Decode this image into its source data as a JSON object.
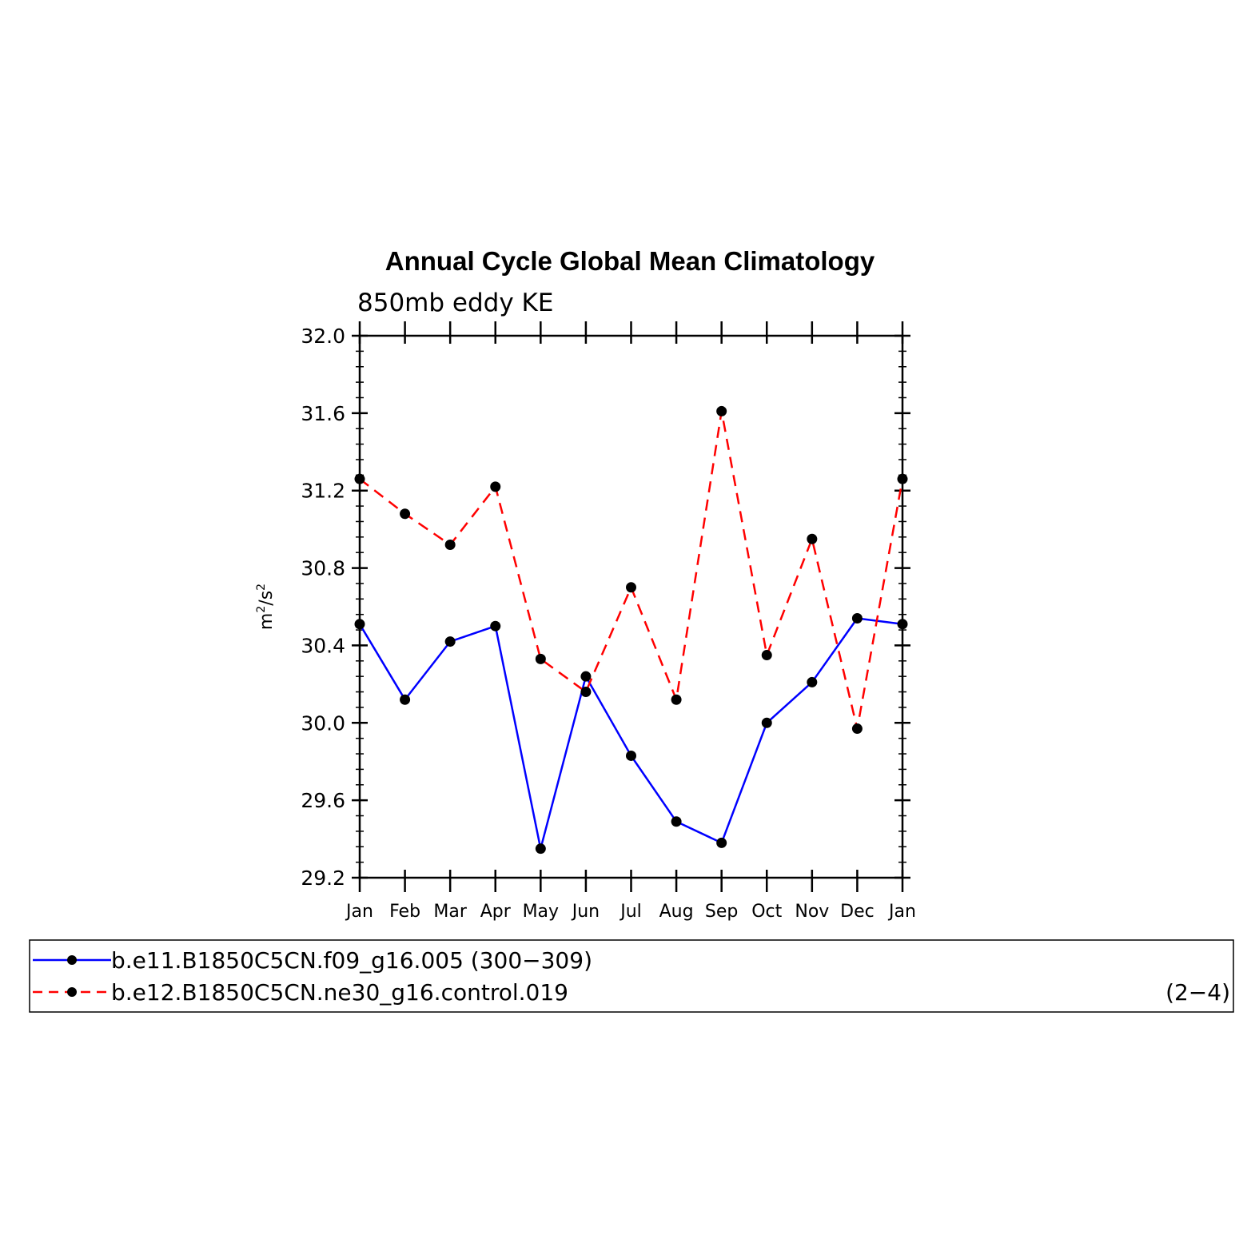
{
  "chart_data": {
    "type": "line",
    "title": "Annual Cycle Global Mean Climatology",
    "subtitle": "850mb eddy KE",
    "ylabel_base": "m",
    "ylabel_sup1": "2",
    "ylabel_mid": "/s",
    "ylabel_sup2": "2",
    "xlabel": "",
    "categories": [
      "Jan",
      "Feb",
      "Mar",
      "Apr",
      "May",
      "Jun",
      "Jul",
      "Aug",
      "Sep",
      "Oct",
      "Nov",
      "Dec",
      "Jan"
    ],
    "ylim": [
      29.2,
      32.0
    ],
    "yticks": [
      "29.2",
      "29.6",
      "30.0",
      "30.4",
      "30.8",
      "31.2",
      "31.6",
      "32.0"
    ],
    "series": [
      {
        "name": "b.e11.B1850C5CN.f09_g16.005 (300−309)",
        "color": "#0000ff",
        "dash": "solid",
        "values": [
          30.51,
          30.12,
          30.42,
          30.5,
          29.35,
          30.24,
          29.83,
          29.49,
          29.38,
          30.0,
          30.21,
          30.54,
          30.51
        ]
      },
      {
        "name": "b.e12.B1850C5CN.ne30_g16.control.019",
        "color": "#ff0000",
        "dash": "dashed",
        "values": [
          31.26,
          31.08,
          30.92,
          31.22,
          30.33,
          30.16,
          30.7,
          30.12,
          31.61,
          30.35,
          30.95,
          29.97,
          31.26
        ]
      }
    ],
    "legend_note": "(2−4)",
    "legend_position": "bottom",
    "grid": false
  }
}
